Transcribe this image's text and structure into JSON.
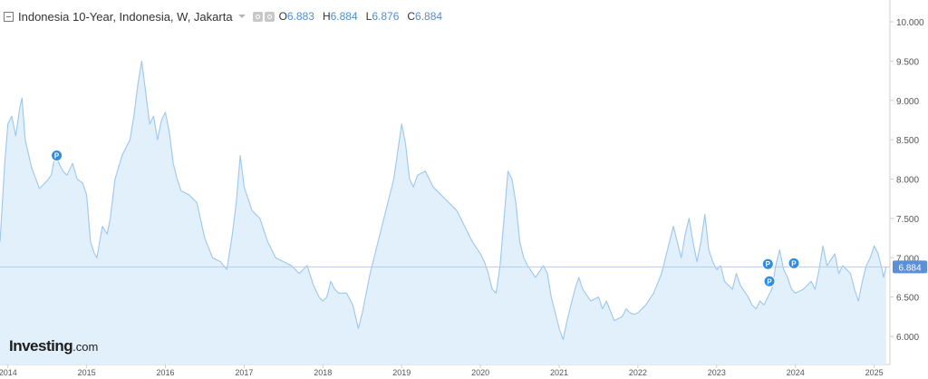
{
  "header": {
    "title": "Indonesia 10-Year, Indonesia, W, Jakarta",
    "ohlc": [
      {
        "label": "O",
        "value": "6.883"
      },
      {
        "label": "H",
        "value": "6.884"
      },
      {
        "label": "L",
        "value": "6.876"
      },
      {
        "label": "C",
        "value": "6.884"
      }
    ]
  },
  "logo": {
    "main": "Investing",
    "suffix": ".com"
  },
  "colors": {
    "line": "#9cc7ec",
    "fill": "#e2f0fb",
    "accent": "#4a90d9",
    "price_tag": "#5b8fd9",
    "marker": "#2f8de4"
  },
  "chart_data": {
    "type": "area",
    "ylim": [
      5.75,
      10.15
    ],
    "xlim": [
      2013.9,
      2025.2
    ],
    "y_ticks": [
      "10.000",
      "9.500",
      "9.000",
      "8.500",
      "8.000",
      "7.500",
      "7.000",
      "6.500",
      "6.000"
    ],
    "x_ticks": [
      "2014",
      "2015",
      "2016",
      "2017",
      "2018",
      "2019",
      "2020",
      "2021",
      "2022",
      "2023",
      "2024",
      "2025"
    ],
    "last_price": "6.884",
    "last_value": 6.884,
    "markers": [
      {
        "label": "P",
        "x": 2014.62,
        "y": 8.3
      },
      {
        "label": "P",
        "x": 2023.65,
        "y": 6.92
      },
      {
        "label": "P",
        "x": 2023.67,
        "y": 6.7
      },
      {
        "label": "P",
        "x": 2023.98,
        "y": 6.93
      }
    ],
    "series": [
      {
        "points": [
          [
            2013.9,
            7.2
          ],
          [
            2013.96,
            8.2
          ],
          [
            2014.0,
            8.7
          ],
          [
            2014.05,
            8.8
          ],
          [
            2014.1,
            8.55
          ],
          [
            2014.15,
            8.9
          ],
          [
            2014.18,
            9.03
          ],
          [
            2014.22,
            8.5
          ],
          [
            2014.3,
            8.15
          ],
          [
            2014.4,
            7.88
          ],
          [
            2014.5,
            7.98
          ],
          [
            2014.55,
            8.05
          ],
          [
            2014.6,
            8.3
          ],
          [
            2014.7,
            8.1
          ],
          [
            2014.75,
            8.05
          ],
          [
            2014.82,
            8.2
          ],
          [
            2014.88,
            8.0
          ],
          [
            2014.95,
            7.95
          ],
          [
            2015.0,
            7.8
          ],
          [
            2015.05,
            7.2
          ],
          [
            2015.1,
            7.05
          ],
          [
            2015.13,
            7.0
          ],
          [
            2015.2,
            7.4
          ],
          [
            2015.26,
            7.3
          ],
          [
            2015.3,
            7.5
          ],
          [
            2015.36,
            8.0
          ],
          [
            2015.45,
            8.3
          ],
          [
            2015.55,
            8.5
          ],
          [
            2015.6,
            8.8
          ],
          [
            2015.65,
            9.2
          ],
          [
            2015.7,
            9.5
          ],
          [
            2015.75,
            9.1
          ],
          [
            2015.8,
            8.7
          ],
          [
            2015.85,
            8.8
          ],
          [
            2015.9,
            8.5
          ],
          [
            2015.95,
            8.75
          ],
          [
            2016.0,
            8.85
          ],
          [
            2016.05,
            8.6
          ],
          [
            2016.1,
            8.2
          ],
          [
            2016.15,
            8.0
          ],
          [
            2016.2,
            7.85
          ],
          [
            2016.3,
            7.8
          ],
          [
            2016.4,
            7.7
          ],
          [
            2016.5,
            7.25
          ],
          [
            2016.6,
            7.0
          ],
          [
            2016.7,
            6.95
          ],
          [
            2016.78,
            6.85
          ],
          [
            2016.85,
            7.3
          ],
          [
            2016.9,
            7.7
          ],
          [
            2016.95,
            8.3
          ],
          [
            2017.0,
            7.9
          ],
          [
            2017.1,
            7.6
          ],
          [
            2017.2,
            7.5
          ],
          [
            2017.3,
            7.2
          ],
          [
            2017.4,
            7.0
          ],
          [
            2017.5,
            6.95
          ],
          [
            2017.6,
            6.9
          ],
          [
            2017.7,
            6.8
          ],
          [
            2017.8,
            6.9
          ],
          [
            2017.88,
            6.65
          ],
          [
            2017.95,
            6.5
          ],
          [
            2018.0,
            6.45
          ],
          [
            2018.05,
            6.5
          ],
          [
            2018.1,
            6.7
          ],
          [
            2018.15,
            6.6
          ],
          [
            2018.2,
            6.55
          ],
          [
            2018.3,
            6.55
          ],
          [
            2018.38,
            6.4
          ],
          [
            2018.45,
            6.1
          ],
          [
            2018.5,
            6.3
          ],
          [
            2018.6,
            6.8
          ],
          [
            2018.7,
            7.2
          ],
          [
            2018.8,
            7.6
          ],
          [
            2018.9,
            8.0
          ],
          [
            2018.95,
            8.35
          ],
          [
            2019.0,
            8.7
          ],
          [
            2019.05,
            8.45
          ],
          [
            2019.1,
            8.0
          ],
          [
            2019.15,
            7.9
          ],
          [
            2019.2,
            8.05
          ],
          [
            2019.3,
            8.1
          ],
          [
            2019.4,
            7.9
          ],
          [
            2019.5,
            7.8
          ],
          [
            2019.6,
            7.7
          ],
          [
            2019.7,
            7.6
          ],
          [
            2019.8,
            7.4
          ],
          [
            2019.9,
            7.2
          ],
          [
            2020.0,
            7.05
          ],
          [
            2020.05,
            6.95
          ],
          [
            2020.1,
            6.8
          ],
          [
            2020.15,
            6.6
          ],
          [
            2020.2,
            6.55
          ],
          [
            2020.25,
            6.9
          ],
          [
            2020.3,
            7.5
          ],
          [
            2020.35,
            8.1
          ],
          [
            2020.4,
            8.0
          ],
          [
            2020.45,
            7.7
          ],
          [
            2020.5,
            7.2
          ],
          [
            2020.55,
            7.0
          ],
          [
            2020.6,
            6.9
          ],
          [
            2020.7,
            6.75
          ],
          [
            2020.8,
            6.9
          ],
          [
            2020.85,
            6.8
          ],
          [
            2020.9,
            6.5
          ],
          [
            2020.95,
            6.3
          ],
          [
            2021.0,
            6.1
          ],
          [
            2021.05,
            5.96
          ],
          [
            2021.1,
            6.2
          ],
          [
            2021.15,
            6.4
          ],
          [
            2021.2,
            6.6
          ],
          [
            2021.25,
            6.75
          ],
          [
            2021.3,
            6.6
          ],
          [
            2021.4,
            6.45
          ],
          [
            2021.5,
            6.5
          ],
          [
            2021.55,
            6.35
          ],
          [
            2021.6,
            6.45
          ],
          [
            2021.7,
            6.2
          ],
          [
            2021.8,
            6.25
          ],
          [
            2021.85,
            6.35
          ],
          [
            2021.9,
            6.3
          ],
          [
            2021.95,
            6.28
          ],
          [
            2022.0,
            6.3
          ],
          [
            2022.1,
            6.4
          ],
          [
            2022.2,
            6.55
          ],
          [
            2022.3,
            6.8
          ],
          [
            2022.4,
            7.2
          ],
          [
            2022.45,
            7.4
          ],
          [
            2022.5,
            7.2
          ],
          [
            2022.55,
            7.0
          ],
          [
            2022.6,
            7.3
          ],
          [
            2022.65,
            7.5
          ],
          [
            2022.7,
            7.2
          ],
          [
            2022.75,
            6.95
          ],
          [
            2022.8,
            7.2
          ],
          [
            2022.85,
            7.55
          ],
          [
            2022.9,
            7.1
          ],
          [
            2022.95,
            6.95
          ],
          [
            2023.0,
            6.85
          ],
          [
            2023.05,
            6.9
          ],
          [
            2023.1,
            6.7
          ],
          [
            2023.2,
            6.6
          ],
          [
            2023.25,
            6.8
          ],
          [
            2023.3,
            6.65
          ],
          [
            2023.4,
            6.5
          ],
          [
            2023.45,
            6.4
          ],
          [
            2023.5,
            6.35
          ],
          [
            2023.55,
            6.45
          ],
          [
            2023.6,
            6.4
          ],
          [
            2023.7,
            6.6
          ],
          [
            2023.75,
            6.9
          ],
          [
            2023.8,
            7.1
          ],
          [
            2023.85,
            6.85
          ],
          [
            2023.9,
            6.75
          ],
          [
            2023.95,
            6.6
          ],
          [
            2024.0,
            6.55
          ],
          [
            2024.1,
            6.6
          ],
          [
            2024.2,
            6.7
          ],
          [
            2024.25,
            6.6
          ],
          [
            2024.3,
            6.85
          ],
          [
            2024.35,
            7.15
          ],
          [
            2024.4,
            6.9
          ],
          [
            2024.5,
            7.05
          ],
          [
            2024.55,
            6.8
          ],
          [
            2024.6,
            6.9
          ],
          [
            2024.7,
            6.8
          ],
          [
            2024.75,
            6.6
          ],
          [
            2024.8,
            6.45
          ],
          [
            2024.85,
            6.7
          ],
          [
            2024.9,
            6.9
          ],
          [
            2024.95,
            7.0
          ],
          [
            2025.0,
            7.15
          ],
          [
            2025.05,
            7.05
          ],
          [
            2025.1,
            6.85
          ],
          [
            2025.12,
            6.75
          ],
          [
            2025.15,
            6.884
          ]
        ]
      }
    ]
  }
}
